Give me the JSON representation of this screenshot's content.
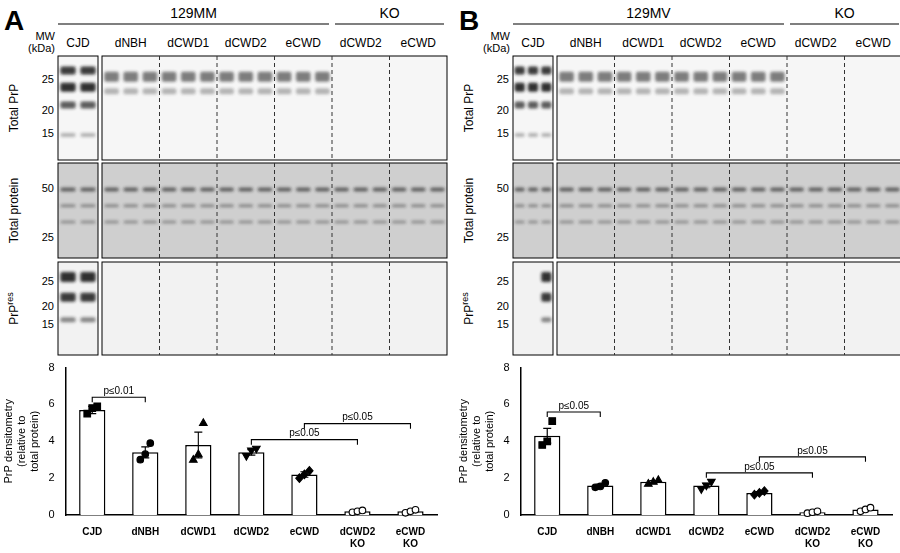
{
  "panels": [
    {
      "label": "A",
      "headers": [
        "129MM",
        "KO"
      ],
      "lane_labels": [
        "CJD",
        "dNBH",
        "dCWD1",
        "dCWD2",
        "eCWD",
        "dCWD2",
        "eCWD"
      ],
      "mw_label": [
        "MW",
        "(kDa)"
      ],
      "blots": [
        {
          "label": "Total PrP",
          "mw": [
            25,
            20,
            15
          ]
        },
        {
          "label": "Total protein",
          "mw": [
            50,
            25
          ]
        },
        {
          "label": {
            "text": "PrP",
            "superscript": "res"
          },
          "mw": [
            25,
            20,
            15
          ]
        }
      ]
    },
    {
      "label": "B",
      "headers": [
        "129MV",
        "KO"
      ],
      "lane_labels": [
        "CJD",
        "dNBH",
        "dCWD1",
        "dCWD2",
        "eCWD",
        "dCWD2",
        "eCWD"
      ],
      "mw_label": [
        "MW",
        "(kDa)"
      ],
      "blots": [
        {
          "label": "Total PrP",
          "mw": [
            25,
            20,
            15
          ]
        },
        {
          "label": "Total protein",
          "mw": [
            50,
            25
          ]
        },
        {
          "label": {
            "text": "PrP",
            "superscript": "res"
          },
          "mw": [
            25,
            20,
            15
          ]
        }
      ]
    }
  ],
  "chart_data": [
    {
      "type": "bar",
      "categories": [
        "CJD",
        "dNBH",
        "dCWD1",
        "dCWD2",
        "eCWD",
        "dCWD2 KO",
        "eCWD KO"
      ],
      "values": [
        5.7,
        3.4,
        3.8,
        3.4,
        2.2,
        0.2,
        0.2
      ],
      "errors": [
        0.2,
        0.3,
        0.7,
        0.15,
        0.15,
        0.03,
        0.05
      ],
      "points": [
        [
          5.5,
          5.8,
          5.9
        ],
        [
          3.0,
          3.3,
          3.9
        ],
        [
          3.0,
          3.3,
          5.0
        ],
        [
          3.2,
          3.5,
          3.6
        ],
        [
          2.0,
          2.2,
          2.4
        ],
        [
          0.15,
          0.2,
          0.25
        ],
        [
          0.12,
          0.2,
          0.28
        ]
      ],
      "markers": [
        "square",
        "circle",
        "triangle",
        "triangle-down",
        "diamond",
        "circle-open",
        "circle-open"
      ],
      "color": "#ffffff",
      "y_label": "PrP densitometry\n(relative to\ntotal protein)",
      "ylim": [
        0,
        8
      ],
      "yticks": [
        0,
        2,
        4,
        6,
        8
      ],
      "grid": false,
      "comparisons": [
        {
          "from": "CJD",
          "to": "dNBH",
          "label": "p≤0.01"
        },
        {
          "from": "dCWD2",
          "to": "dCWD2 KO",
          "label": "p≤0.05"
        },
        {
          "from": "eCWD",
          "to": "eCWD KO",
          "label": "p≤0.05"
        }
      ]
    },
    {
      "type": "bar",
      "categories": [
        "CJD",
        "dNBH",
        "dCWD1",
        "dCWD2",
        "eCWD",
        "dCWD2 KO",
        "eCWD KO"
      ],
      "values": [
        4.3,
        1.6,
        1.8,
        1.6,
        1.2,
        0.15,
        0.3
      ],
      "errors": [
        0.4,
        0.08,
        0.07,
        0.12,
        0.07,
        0.03,
        0.06
      ],
      "points": [
        [
          3.8,
          4.0,
          5.1
        ],
        [
          1.5,
          1.55,
          1.75
        ],
        [
          1.7,
          1.8,
          1.9
        ],
        [
          1.4,
          1.6,
          1.8
        ],
        [
          1.1,
          1.2,
          1.3
        ],
        [
          0.1,
          0.15,
          0.2
        ],
        [
          0.2,
          0.3,
          0.4
        ]
      ],
      "markers": [
        "square",
        "circle",
        "triangle",
        "triangle-down",
        "diamond",
        "circle-open",
        "circle-open"
      ],
      "color": "#ffffff",
      "y_label": "PrP densitometry\n(relative to\ntotal protein)",
      "ylim": [
        0,
        8
      ],
      "yticks": [
        0,
        2,
        4,
        6,
        8
      ],
      "grid": false,
      "comparisons": [
        {
          "from": "CJD",
          "to": "dNBH",
          "label": "p≤0.05"
        },
        {
          "from": "dCWD2",
          "to": "dCWD2 KO",
          "label": "p≤0.05"
        },
        {
          "from": "eCWD",
          "to": "eCWD KO",
          "label": "p≤0.05"
        }
      ]
    }
  ]
}
